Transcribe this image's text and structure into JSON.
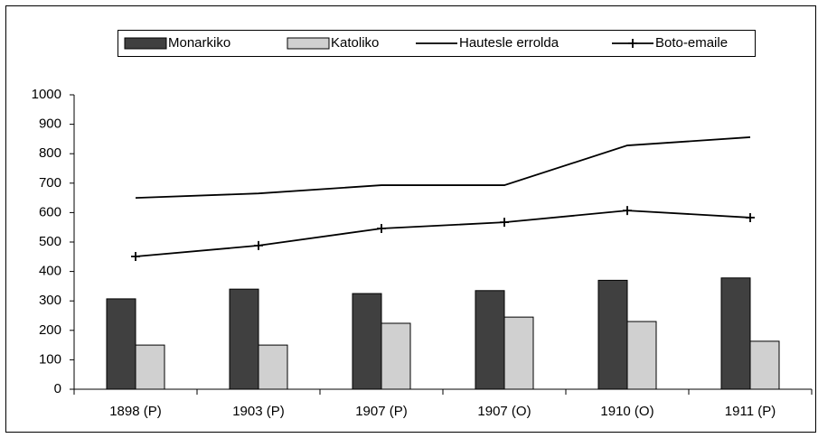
{
  "chart_data": {
    "type": "bar",
    "categories": [
      "1898 (P)",
      "1903 (P)",
      "1907 (P)",
      "1907 (O)",
      "1910 (O)",
      "1911 (P)"
    ],
    "series": [
      {
        "name": "Monarkiko",
        "type": "bar",
        "color": "#404040",
        "values": [
          307,
          340,
          325,
          335,
          370,
          378
        ]
      },
      {
        "name": "Katoliko",
        "type": "bar",
        "color": "#d0d0d0",
        "values": [
          150,
          150,
          224,
          245,
          230,
          163
        ]
      },
      {
        "name": "Hautesle errolda",
        "type": "line",
        "color": "#000000",
        "values": [
          650,
          665,
          693,
          693,
          828,
          856
        ]
      },
      {
        "name": "Boto-emaile",
        "type": "line",
        "marker": "+",
        "color": "#000000",
        "values": [
          451,
          488,
          546,
          567,
          607,
          583
        ]
      }
    ],
    "ylim": [
      0,
      1000
    ],
    "yticks": [
      0,
      100,
      200,
      300,
      400,
      500,
      600,
      700,
      800,
      900,
      1000
    ],
    "legend": "top",
    "grid": false
  }
}
